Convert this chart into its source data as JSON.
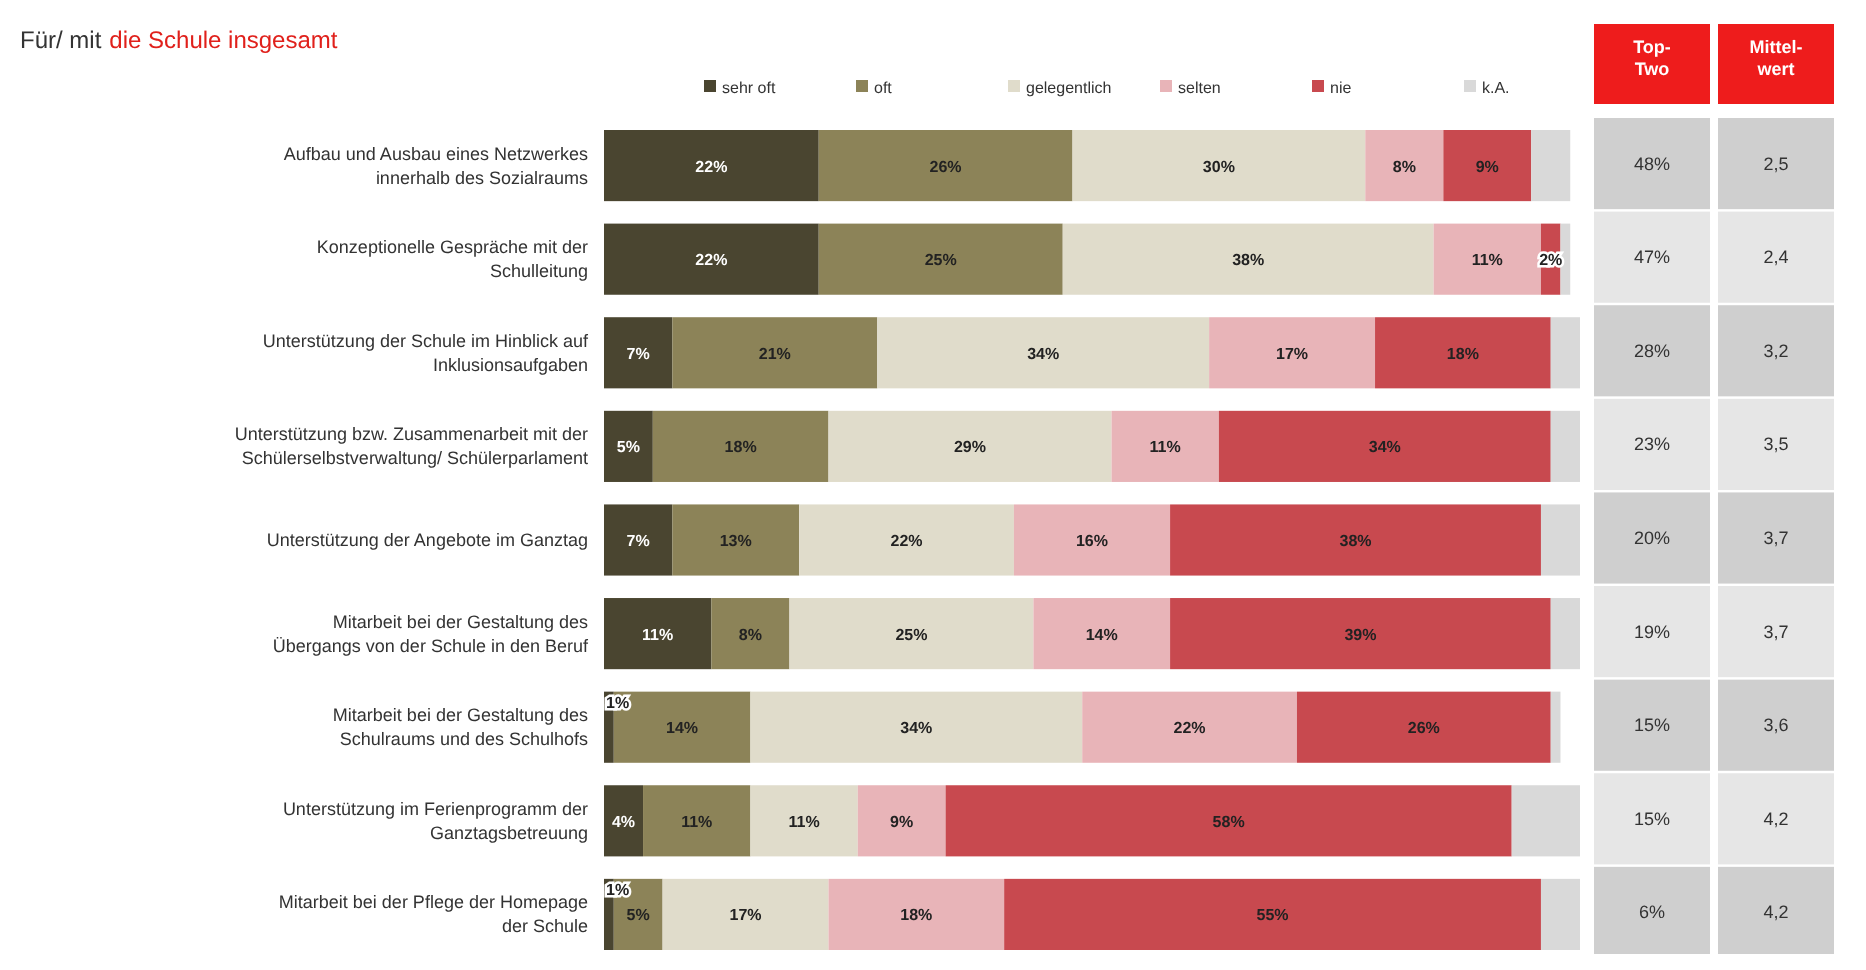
{
  "chart_data": {
    "type": "bar",
    "orientation": "horizontal",
    "stacked": true,
    "title": "Für/ mit",
    "subtitle": "die Schule insgesamt",
    "categories": [
      "Aufbau und Ausbau eines Netzwerkes\ninnerhalb des Sozialraums",
      "Konzeptionelle Gespräche mit der\nSchulleitung",
      "Unterstützung der Schule im Hinblick auf\nInklusionsaufgaben",
      "Unterstützung bzw. Zusammenarbeit mit der\nSchülerselbstverwaltung/ Schülerparlament",
      "Unterstützung der Angebote im Ganztag",
      "Mitarbeit bei der Gestaltung des\nÜbergangs von der Schule in den Beruf",
      "Mitarbeit bei der Gestaltung des\nSchulraums und des Schulhofs",
      "Unterstützung im Ferienprogramm der\nGanztagsbetreuung",
      "Mitarbeit bei der Pflege der Homepage\nder Schule"
    ],
    "series": [
      {
        "name": "sehr oft",
        "color": "#4a4530",
        "values": [
          22,
          22,
          7,
          5,
          7,
          11,
          1,
          4,
          1
        ],
        "value_labels": [
          "22%",
          "22%",
          "7%",
          "5%",
          "7%",
          "11%",
          "1%",
          "4%",
          "1%"
        ]
      },
      {
        "name": "oft",
        "color": "#8c8358",
        "values": [
          26,
          25,
          21,
          18,
          13,
          8,
          14,
          11,
          5
        ],
        "value_labels": [
          "26%",
          "25%",
          "21%",
          "18%",
          "13%",
          "8%",
          "14%",
          "11%",
          "5%"
        ]
      },
      {
        "name": "gelegentlich",
        "color": "#e0dccb",
        "values": [
          30,
          38,
          34,
          29,
          22,
          25,
          34,
          11,
          17
        ],
        "value_labels": [
          "30%",
          "38%",
          "34%",
          "29%",
          "22%",
          "25%",
          "34%",
          "11%",
          "17%"
        ]
      },
      {
        "name": "selten",
        "color": "#e8b4b8",
        "values": [
          8,
          11,
          17,
          11,
          16,
          14,
          22,
          9,
          18
        ],
        "value_labels": [
          "8%",
          "11%",
          "17%",
          "11%",
          "16%",
          "14%",
          "22%",
          "9%",
          "18%"
        ]
      },
      {
        "name": "nie",
        "color": "#c8494f",
        "values": [
          9,
          2,
          18,
          34,
          38,
          39,
          26,
          58,
          55
        ],
        "value_labels": [
          "9%",
          "2%",
          "18%",
          "34%",
          "38%",
          "39%",
          "26%",
          "58%",
          "55%"
        ]
      },
      {
        "name": "k.A.",
        "color": "#d9d9d9",
        "values": [
          4,
          1,
          3,
          3,
          4,
          3,
          1,
          7,
          4
        ]
      }
    ],
    "xlim": [
      0,
      100
    ],
    "legend": "top",
    "annotations": [
      "Top-Two",
      "Mittel-wert",
      "48%",
      "2,5",
      "47%",
      "2,4",
      "28%",
      "3,2",
      "23%",
      "3,5",
      "20%",
      "3,7",
      "19%",
      "3,7",
      "15%",
      "3,6",
      "15%",
      "4,2",
      "6%",
      "4,2"
    ]
  }
}
